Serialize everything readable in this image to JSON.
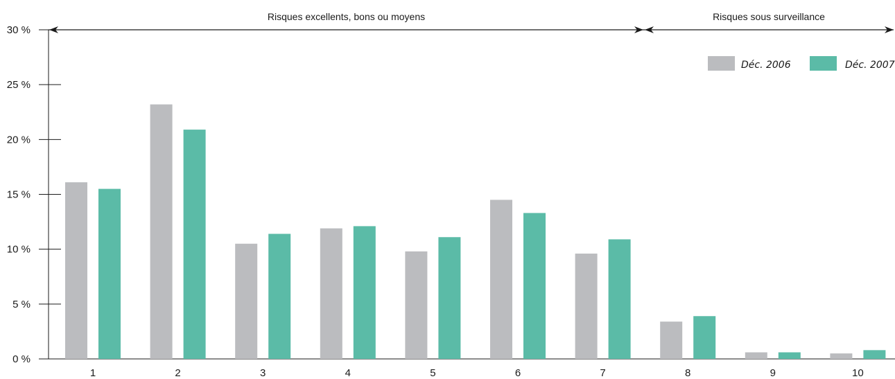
{
  "chart_data": {
    "type": "bar",
    "categories": [
      "1",
      "2",
      "3",
      "4",
      "5",
      "6",
      "7",
      "8",
      "9",
      "10"
    ],
    "series": [
      {
        "name": "Déc. 2006",
        "color": "#bbbcbf",
        "values": [
          16.1,
          23.2,
          10.5,
          11.9,
          9.8,
          14.5,
          9.6,
          3.4,
          0.6,
          0.5
        ]
      },
      {
        "name": "Déc. 2007",
        "color": "#5bbba7",
        "values": [
          15.5,
          20.9,
          11.4,
          12.1,
          11.1,
          13.3,
          10.9,
          3.9,
          0.6,
          0.8
        ]
      }
    ],
    "ylim": [
      0,
      30
    ],
    "yticks": [
      0,
      5,
      10,
      15,
      20,
      25,
      30
    ],
    "ytick_labels": [
      "0 %",
      "5 %",
      "10 %",
      "15 %",
      "20 %",
      "25 %",
      "30 %"
    ],
    "grid": false,
    "legend_position": "top-right",
    "zones": [
      {
        "label": "Risques excellents, bons ou moyens",
        "from_category": "1",
        "to_category": "7"
      },
      {
        "label": "Risques sous surveillance",
        "from_category": "8",
        "to_category": "10"
      }
    ]
  }
}
